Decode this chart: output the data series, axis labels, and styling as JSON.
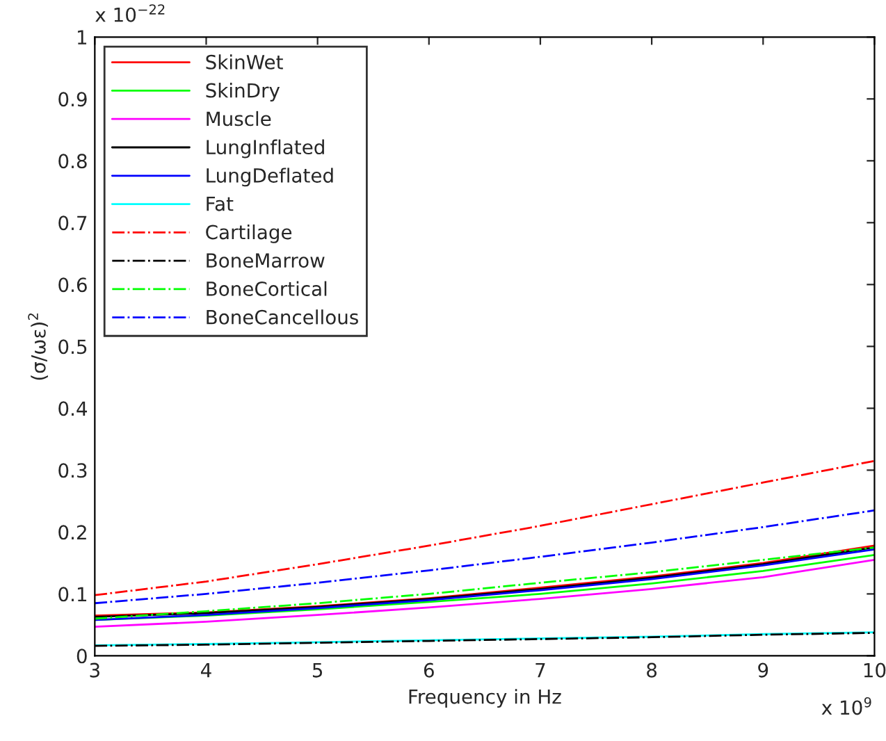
{
  "chart_data": {
    "type": "line",
    "xlabel": "Frequency in Hz",
    "ylabel": "(σ/ωε)$^{2}$",
    "x": [
      3,
      4,
      5,
      6,
      7,
      8,
      9,
      10
    ],
    "xlim": [
      3,
      10
    ],
    "xticks": [
      3,
      4,
      5,
      6,
      7,
      8,
      9,
      10
    ],
    "ylim": [
      0,
      1
    ],
    "yticks": [
      0,
      0.1,
      0.2,
      0.3,
      0.4,
      0.5,
      0.6,
      0.7,
      0.8,
      0.9,
      1
    ],
    "annotations": [
      "x 10$^{−22}$",
      "x 10$^{9}$"
    ],
    "legend": "top left",
    "grid": false,
    "series": [
      {
        "name": "SkinWet",
        "color": "#ff0000",
        "line_style": "solid",
        "values": [
          0.065,
          0.07,
          0.08,
          0.093,
          0.11,
          0.128,
          0.15,
          0.178
        ]
      },
      {
        "name": "SkinDry",
        "color": "#00ff00",
        "line_style": "solid",
        "values": [
          0.058,
          0.065,
          0.075,
          0.087,
          0.1,
          0.117,
          0.137,
          0.163
        ]
      },
      {
        "name": "Muscle",
        "color": "#ff00ff",
        "line_style": "solid",
        "values": [
          0.047,
          0.055,
          0.066,
          0.078,
          0.092,
          0.108,
          0.127,
          0.155
        ]
      },
      {
        "name": "LungInflated",
        "color": "#000000",
        "line_style": "solid",
        "values": [
          0.063,
          0.069,
          0.079,
          0.092,
          0.108,
          0.126,
          0.148,
          0.175
        ]
      },
      {
        "name": "LungDeflated",
        "color": "#0000ff",
        "line_style": "solid",
        "values": [
          0.058,
          0.066,
          0.077,
          0.09,
          0.106,
          0.124,
          0.146,
          0.172
        ]
      },
      {
        "name": "Fat",
        "color": "#00ffff",
        "line_style": "solid",
        "values": [
          0.017,
          0.019,
          0.022,
          0.025,
          0.028,
          0.031,
          0.035,
          0.038
        ]
      },
      {
        "name": "Cartilage",
        "color": "#ff0000",
        "line_style": "dashdot",
        "values": [
          0.098,
          0.12,
          0.148,
          0.178,
          0.21,
          0.245,
          0.28,
          0.315
        ]
      },
      {
        "name": "BoneMarrow",
        "color": "#000000",
        "line_style": "dashdot",
        "values": [
          0.016,
          0.018,
          0.021,
          0.024,
          0.027,
          0.03,
          0.034,
          0.037
        ]
      },
      {
        "name": "BoneCortical",
        "color": "#00ff00",
        "line_style": "dashdot",
        "values": [
          0.06,
          0.072,
          0.085,
          0.1,
          0.118,
          0.135,
          0.155,
          0.175
        ]
      },
      {
        "name": "BoneCancellous",
        "color": "#0000ff",
        "line_style": "dashdot",
        "values": [
          0.085,
          0.1,
          0.118,
          0.138,
          0.16,
          0.183,
          0.208,
          0.235
        ]
      }
    ]
  }
}
